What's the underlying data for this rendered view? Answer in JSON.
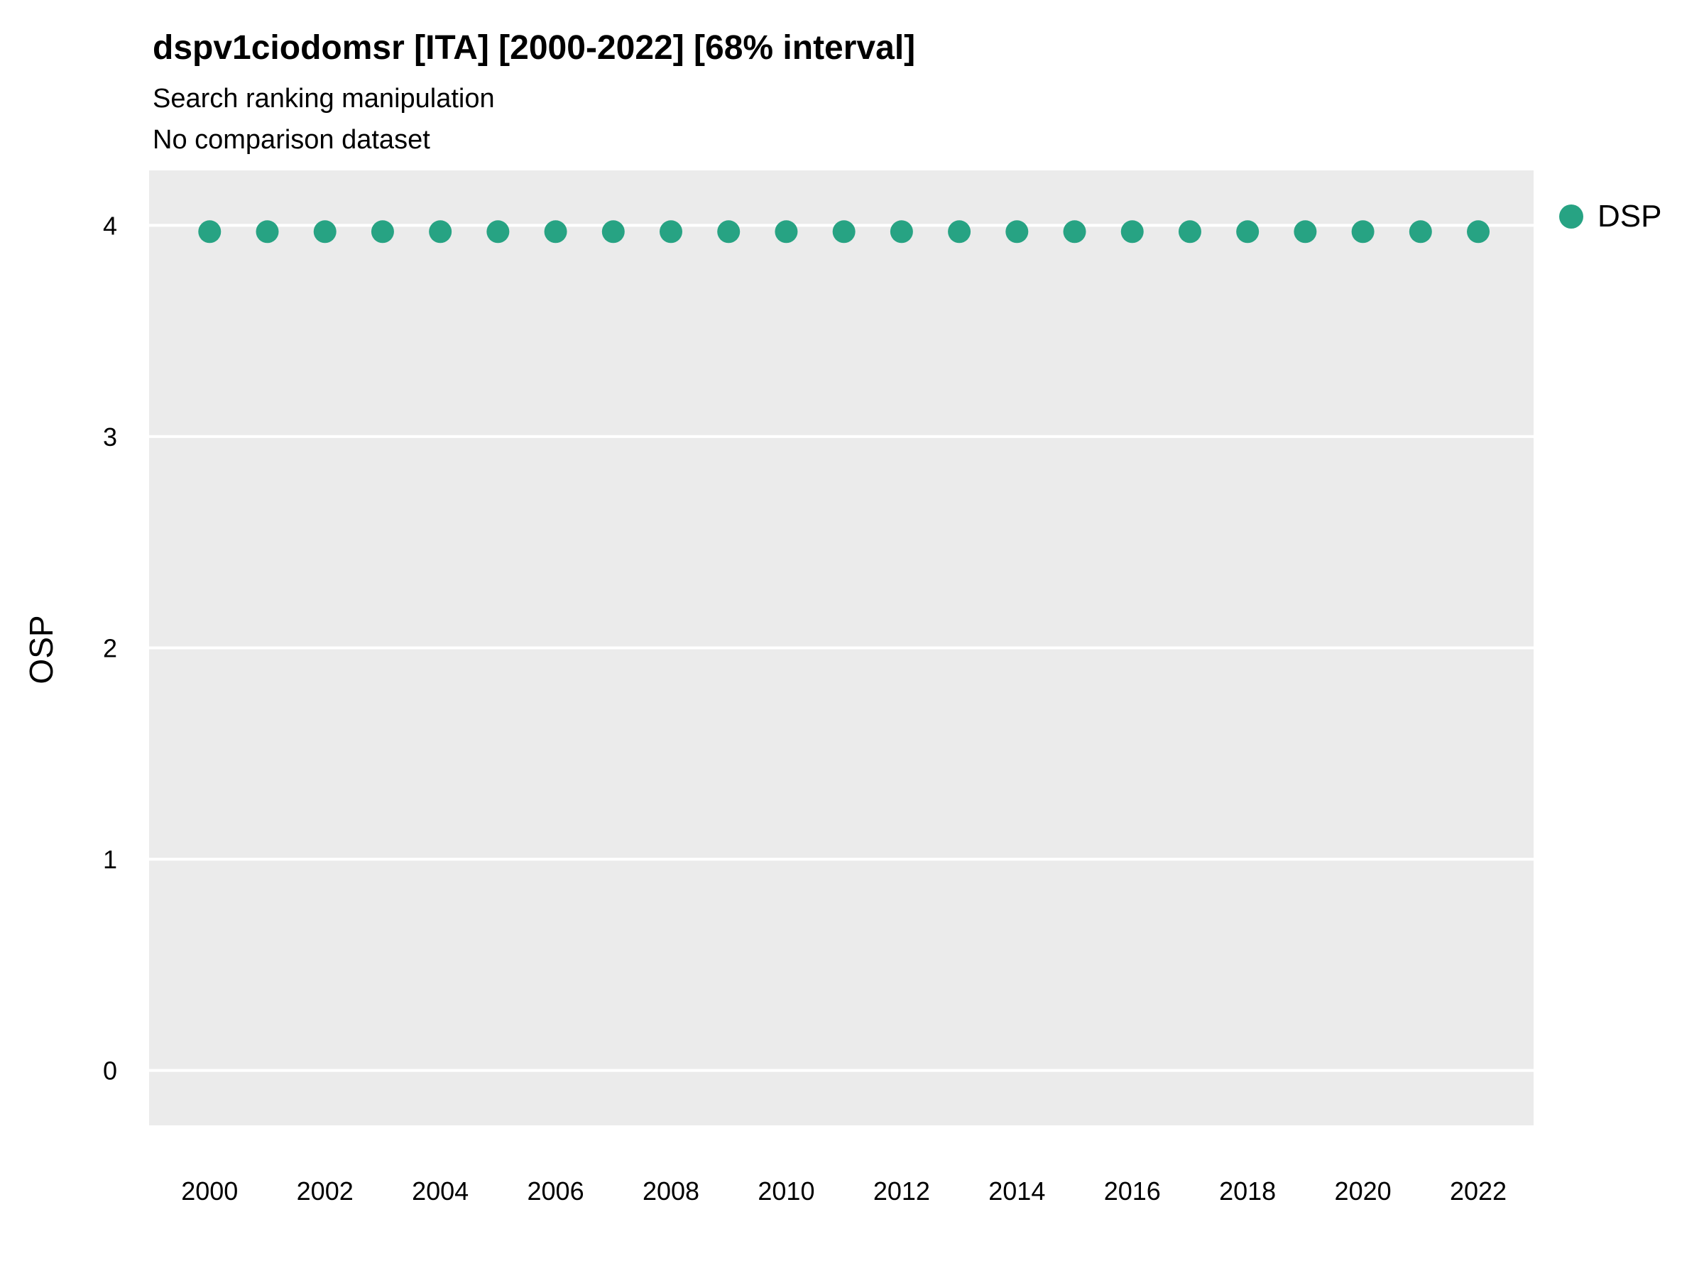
{
  "chart_data": {
    "type": "scatter",
    "title": "dspv1ciodomsr [ITA] [2000-2022] [68% interval]",
    "subtitle": "Search ranking manipulation",
    "subtitle2": "No comparison dataset",
    "xlabel": "",
    "ylabel": "OSP",
    "x": [
      2000,
      2001,
      2002,
      2003,
      2004,
      2005,
      2006,
      2007,
      2008,
      2009,
      2010,
      2011,
      2012,
      2013,
      2014,
      2015,
      2016,
      2017,
      2018,
      2019,
      2020,
      2021,
      2022
    ],
    "series": [
      {
        "name": "DSP",
        "color": "#27A383",
        "values": [
          3.97,
          3.97,
          3.97,
          3.97,
          3.97,
          3.97,
          3.97,
          3.97,
          3.97,
          3.97,
          3.97,
          3.97,
          3.97,
          3.97,
          3.97,
          3.97,
          3.97,
          3.97,
          3.97,
          3.97,
          3.97,
          3.97,
          3.97
        ]
      }
    ],
    "xlim": [
      1998.95,
      2022.96
    ],
    "ylim": [
      -0.26,
      4.26
    ],
    "xticks": [
      2000,
      2002,
      2004,
      2006,
      2008,
      2010,
      2012,
      2014,
      2016,
      2018,
      2020,
      2022
    ],
    "yticks": [
      0,
      1,
      2,
      3,
      4
    ],
    "grid": "horizontal-major",
    "legend_position": "right",
    "legend": {
      "entries": [
        {
          "label": "DSP",
          "color": "#27A383"
        }
      ]
    },
    "panel_bg": "#EBEBEB",
    "grid_color": "#FFFFFF"
  }
}
